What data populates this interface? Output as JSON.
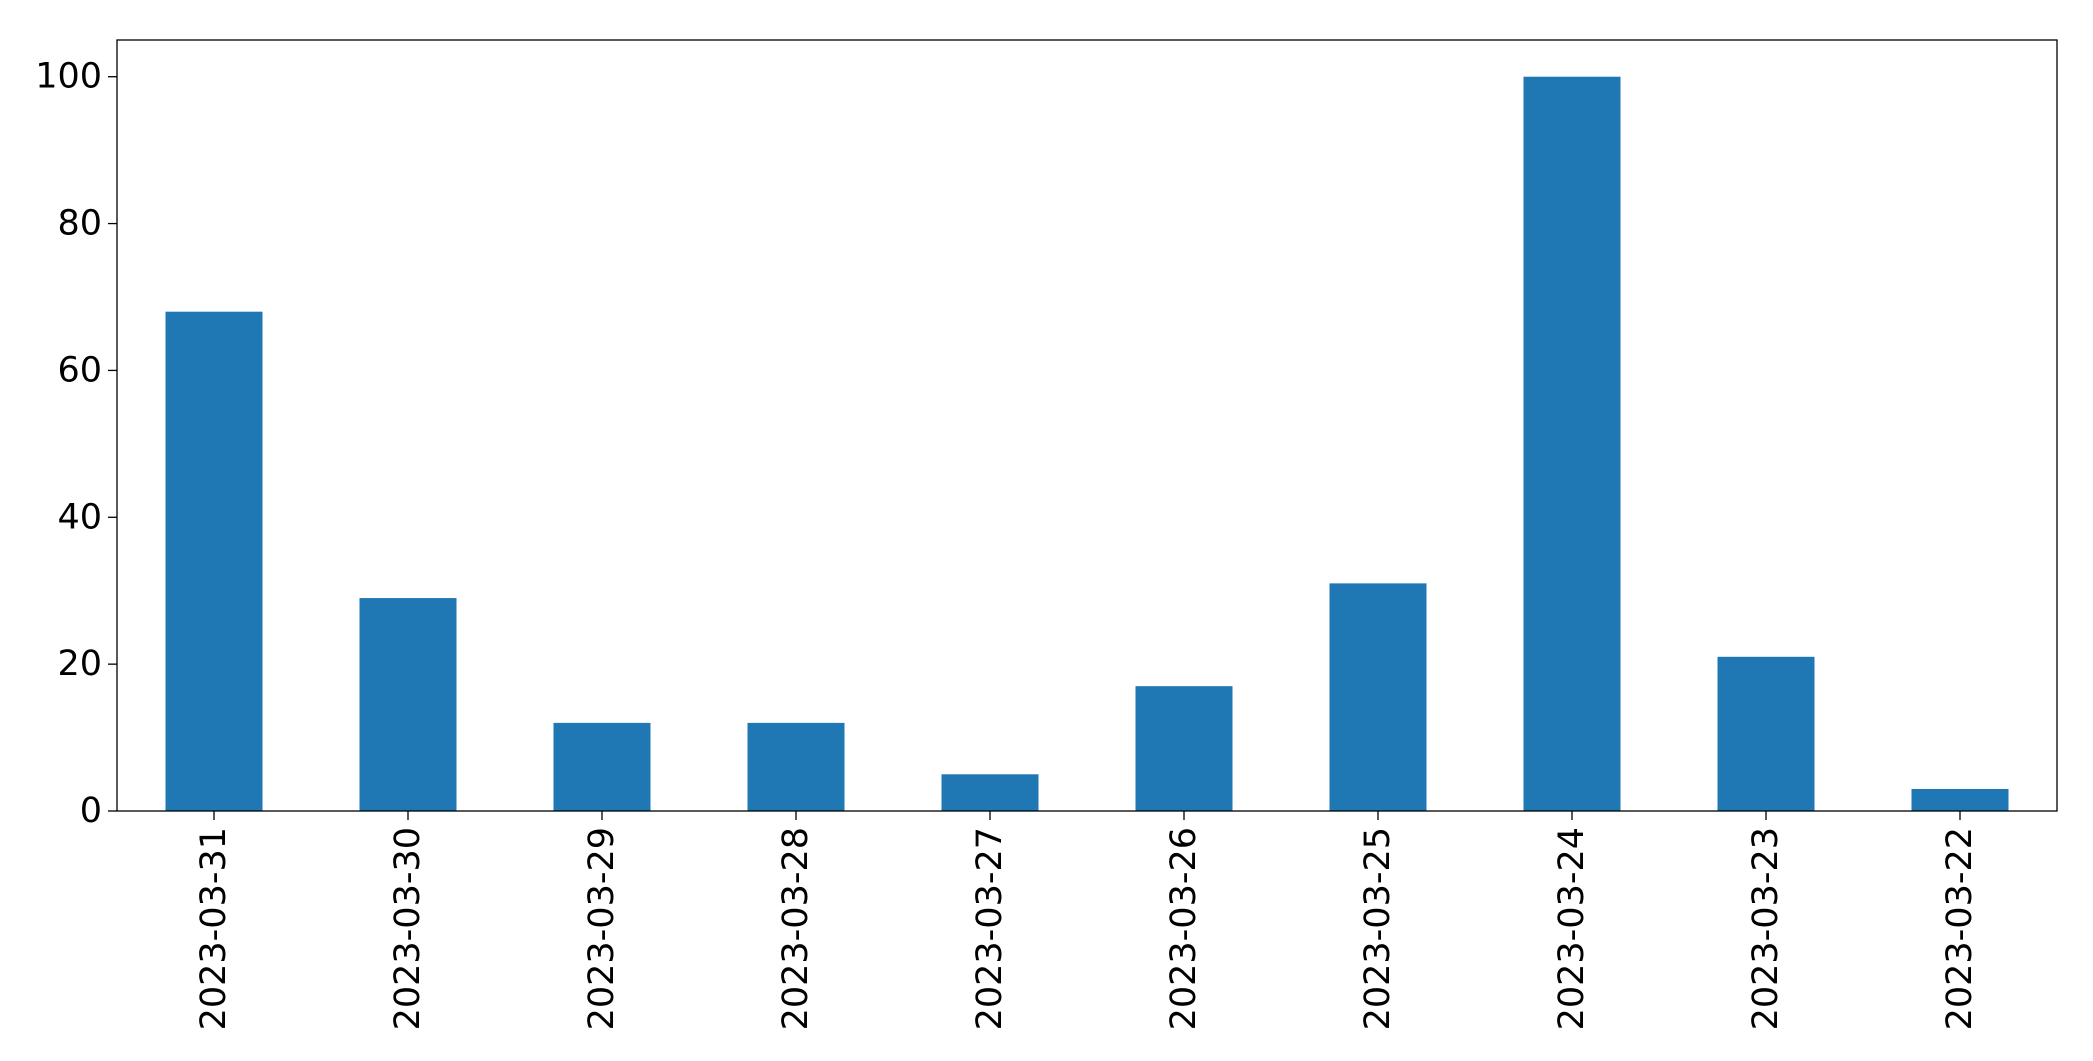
{
  "chart_data": {
    "type": "bar",
    "categories": [
      "2023-03-31",
      "2023-03-30",
      "2023-03-29",
      "2023-03-28",
      "2023-03-27",
      "2023-03-26",
      "2023-03-25",
      "2023-03-24",
      "2023-03-23",
      "2023-03-22"
    ],
    "values": [
      68,
      29,
      12,
      12,
      5,
      17,
      31,
      100,
      21,
      3
    ],
    "title": "",
    "xlabel": "",
    "ylabel": "",
    "ylim": [
      0,
      105
    ],
    "yticks": [
      0,
      20,
      40,
      60,
      80,
      100
    ],
    "grid": false,
    "legend": "none",
    "colors": {
      "bar": "#1f77b4",
      "axis": "#000000",
      "background": "#ffffff"
    }
  }
}
